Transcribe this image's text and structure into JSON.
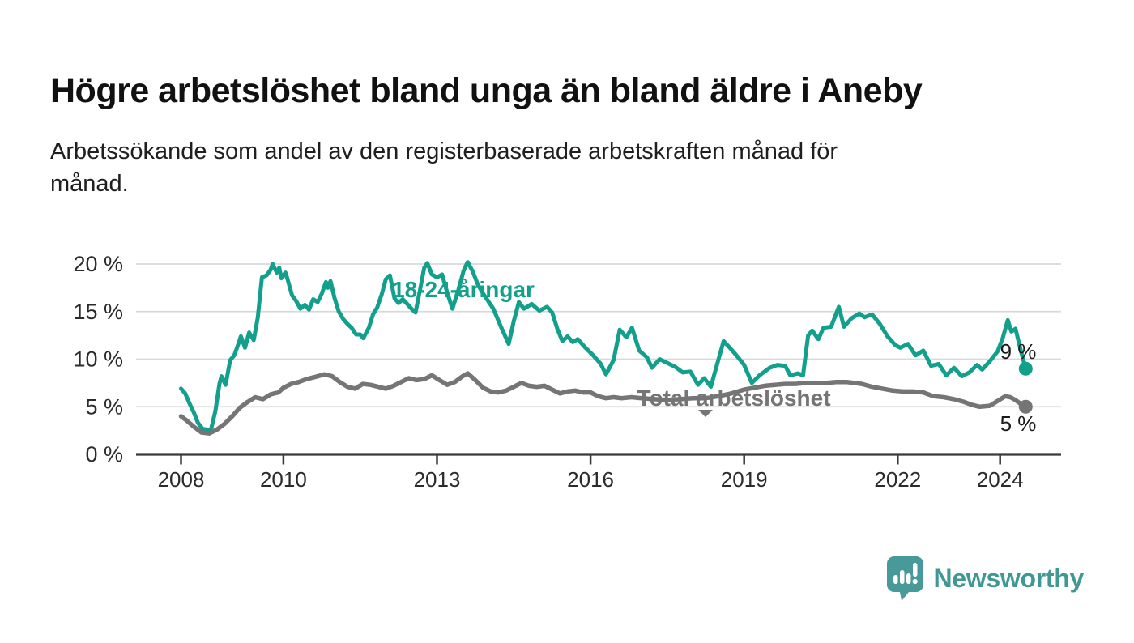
{
  "header": {
    "title": "Högre arbetslöshet bland unga än bland äldre i Aneby",
    "subtitle_line1": "Arbetssökande som andel av den registerbaserade arbetskraften månad för",
    "subtitle_line2": "månad."
  },
  "footer": {
    "brand": "Newsworthy"
  },
  "colors": {
    "young_series": "#12a08c",
    "total_series": "#757575",
    "gridline": "#d9d9d9",
    "axis": "#3a3a3a",
    "tick_label": "#2b2b2b",
    "end_label": "#1a1a1a",
    "logo_icon": "#47999a",
    "logo_text": "#3f9894"
  },
  "chart_data": {
    "type": "line",
    "title": "Högre arbetslöshet bland unga än bland äldre i Aneby",
    "subtitle": "Arbetssökande som andel av den registerbaserade arbetskraften månad för månad.",
    "xlabel": "",
    "ylabel": "",
    "unit": "%",
    "grid": "horizontal",
    "legend_position": "inline-labels",
    "xlim": [
      2007.1,
      2025.2
    ],
    "ylim": [
      0,
      21
    ],
    "yticks": [
      {
        "value": 0,
        "label": "0 %"
      },
      {
        "value": 5,
        "label": "5 %"
      },
      {
        "value": 10,
        "label": "10 %"
      },
      {
        "value": 15,
        "label": "15 %"
      },
      {
        "value": 20,
        "label": "20 %"
      }
    ],
    "xticks": [
      {
        "value": 2008,
        "label": "2008"
      },
      {
        "value": 2010,
        "label": "2010"
      },
      {
        "value": 2013,
        "label": "2013"
      },
      {
        "value": 2016,
        "label": "2016"
      },
      {
        "value": 2019,
        "label": "2019"
      },
      {
        "value": 2022,
        "label": "2022"
      },
      {
        "value": 2024,
        "label": "2024"
      }
    ],
    "series": [
      {
        "name": "18-24-åringar",
        "color": "#12a08c",
        "stroke_width": 5,
        "end_dot": true,
        "end_label": "9 %",
        "end_value": 9,
        "points": [
          [
            2008.0,
            6.9
          ],
          [
            2008.08,
            6.4
          ],
          [
            2008.17,
            5.3
          ],
          [
            2008.25,
            4.4
          ],
          [
            2008.33,
            3.3
          ],
          [
            2008.42,
            2.7
          ],
          [
            2008.5,
            2.6
          ],
          [
            2008.58,
            2.5
          ],
          [
            2008.67,
            4.5
          ],
          [
            2008.75,
            7.4
          ],
          [
            2008.79,
            8.2
          ],
          [
            2008.87,
            7.3
          ],
          [
            2008.96,
            9.9
          ],
          [
            2009.04,
            10.4
          ],
          [
            2009.12,
            11.6
          ],
          [
            2009.17,
            12.4
          ],
          [
            2009.25,
            11.2
          ],
          [
            2009.33,
            12.8
          ],
          [
            2009.42,
            12.0
          ],
          [
            2009.5,
            14.4
          ],
          [
            2009.54,
            16.5
          ],
          [
            2009.58,
            18.6
          ],
          [
            2009.67,
            18.8
          ],
          [
            2009.75,
            19.4
          ],
          [
            2009.79,
            20.0
          ],
          [
            2009.87,
            19.1
          ],
          [
            2009.92,
            19.6
          ],
          [
            2009.96,
            18.5
          ],
          [
            2010.04,
            19.1
          ],
          [
            2010.08,
            18.4
          ],
          [
            2010.17,
            16.7
          ],
          [
            2010.25,
            16.1
          ],
          [
            2010.33,
            15.3
          ],
          [
            2010.42,
            15.7
          ],
          [
            2010.5,
            15.2
          ],
          [
            2010.58,
            16.3
          ],
          [
            2010.67,
            16.0
          ],
          [
            2010.75,
            16.9
          ],
          [
            2010.83,
            18.1
          ],
          [
            2010.87,
            17.5
          ],
          [
            2010.92,
            18.2
          ],
          [
            2011.0,
            16.4
          ],
          [
            2011.08,
            15.0
          ],
          [
            2011.17,
            14.2
          ],
          [
            2011.25,
            13.7
          ],
          [
            2011.33,
            13.3
          ],
          [
            2011.42,
            12.6
          ],
          [
            2011.5,
            12.6
          ],
          [
            2011.56,
            12.2
          ],
          [
            2011.67,
            13.3
          ],
          [
            2011.75,
            14.7
          ],
          [
            2011.83,
            15.4
          ],
          [
            2011.92,
            16.8
          ],
          [
            2012.0,
            18.4
          ],
          [
            2012.08,
            18.8
          ],
          [
            2012.17,
            16.4
          ],
          [
            2012.25,
            15.9
          ],
          [
            2012.33,
            16.3
          ],
          [
            2012.42,
            15.8
          ],
          [
            2012.5,
            15.3
          ],
          [
            2012.58,
            14.9
          ],
          [
            2012.67,
            17.3
          ],
          [
            2012.75,
            19.6
          ],
          [
            2012.81,
            20.1
          ],
          [
            2012.9,
            18.9
          ],
          [
            2013.0,
            18.6
          ],
          [
            2013.1,
            18.9
          ],
          [
            2013.2,
            17.0
          ],
          [
            2013.3,
            15.3
          ],
          [
            2013.42,
            17.3
          ],
          [
            2013.52,
            19.3
          ],
          [
            2013.6,
            20.2
          ],
          [
            2013.7,
            19.2
          ],
          [
            2013.8,
            17.8
          ],
          [
            2013.9,
            16.9
          ],
          [
            2014.0,
            16.1
          ],
          [
            2014.1,
            15.3
          ],
          [
            2014.25,
            13.4
          ],
          [
            2014.4,
            11.6
          ],
          [
            2014.5,
            14.0
          ],
          [
            2014.6,
            16.0
          ],
          [
            2014.7,
            15.3
          ],
          [
            2014.85,
            15.8
          ],
          [
            2015.0,
            15.1
          ],
          [
            2015.15,
            15.5
          ],
          [
            2015.25,
            14.9
          ],
          [
            2015.35,
            13.2
          ],
          [
            2015.45,
            11.9
          ],
          [
            2015.55,
            12.4
          ],
          [
            2015.65,
            11.8
          ],
          [
            2015.75,
            12.1
          ],
          [
            2015.9,
            11.2
          ],
          [
            2016.05,
            10.4
          ],
          [
            2016.2,
            9.5
          ],
          [
            2016.3,
            8.4
          ],
          [
            2016.45,
            9.9
          ],
          [
            2016.57,
            13.1
          ],
          [
            2016.7,
            12.3
          ],
          [
            2016.81,
            13.3
          ],
          [
            2016.95,
            10.9
          ],
          [
            2017.1,
            10.2
          ],
          [
            2017.2,
            9.1
          ],
          [
            2017.35,
            10.0
          ],
          [
            2017.5,
            9.6
          ],
          [
            2017.65,
            9.2
          ],
          [
            2017.8,
            8.6
          ],
          [
            2017.95,
            8.7
          ],
          [
            2018.1,
            7.3
          ],
          [
            2018.22,
            8.0
          ],
          [
            2018.35,
            7.1
          ],
          [
            2018.5,
            10.0
          ],
          [
            2018.6,
            11.9
          ],
          [
            2018.72,
            11.2
          ],
          [
            2018.85,
            10.4
          ],
          [
            2019.0,
            9.4
          ],
          [
            2019.15,
            7.5
          ],
          [
            2019.3,
            8.3
          ],
          [
            2019.5,
            9.1
          ],
          [
            2019.65,
            9.4
          ],
          [
            2019.8,
            9.3
          ],
          [
            2019.9,
            8.3
          ],
          [
            2020.05,
            8.5
          ],
          [
            2020.15,
            8.3
          ],
          [
            2020.25,
            12.5
          ],
          [
            2020.33,
            13.0
          ],
          [
            2020.45,
            12.1
          ],
          [
            2020.55,
            13.3
          ],
          [
            2020.7,
            13.4
          ],
          [
            2020.85,
            15.5
          ],
          [
            2020.95,
            13.4
          ],
          [
            2021.1,
            14.3
          ],
          [
            2021.25,
            14.8
          ],
          [
            2021.35,
            14.4
          ],
          [
            2021.5,
            14.7
          ],
          [
            2021.65,
            13.7
          ],
          [
            2021.8,
            12.4
          ],
          [
            2021.95,
            11.5
          ],
          [
            2022.05,
            11.2
          ],
          [
            2022.2,
            11.6
          ],
          [
            2022.35,
            10.4
          ],
          [
            2022.5,
            10.9
          ],
          [
            2022.65,
            9.3
          ],
          [
            2022.8,
            9.5
          ],
          [
            2022.95,
            8.3
          ],
          [
            2023.1,
            9.1
          ],
          [
            2023.25,
            8.2
          ],
          [
            2023.4,
            8.6
          ],
          [
            2023.55,
            9.4
          ],
          [
            2023.65,
            8.9
          ],
          [
            2023.8,
            9.8
          ],
          [
            2023.95,
            10.8
          ],
          [
            2024.05,
            12.2
          ],
          [
            2024.15,
            14.1
          ],
          [
            2024.22,
            12.9
          ],
          [
            2024.3,
            13.2
          ],
          [
            2024.4,
            11.0
          ],
          [
            2024.5,
            9.0
          ]
        ]
      },
      {
        "name": "Total arbetslöshet",
        "color": "#757575",
        "stroke_width": 5.5,
        "end_dot": true,
        "end_label": "5 %",
        "end_value": 5,
        "points": [
          [
            2008.0,
            4.0
          ],
          [
            2008.1,
            3.6
          ],
          [
            2008.25,
            2.9
          ],
          [
            2008.4,
            2.3
          ],
          [
            2008.55,
            2.2
          ],
          [
            2008.7,
            2.6
          ],
          [
            2008.85,
            3.2
          ],
          [
            2009.0,
            4.0
          ],
          [
            2009.15,
            4.9
          ],
          [
            2009.3,
            5.5
          ],
          [
            2009.45,
            6.0
          ],
          [
            2009.6,
            5.8
          ],
          [
            2009.75,
            6.3
          ],
          [
            2009.9,
            6.5
          ],
          [
            2010.0,
            7.0
          ],
          [
            2010.15,
            7.4
          ],
          [
            2010.3,
            7.6
          ],
          [
            2010.45,
            7.9
          ],
          [
            2010.6,
            8.1
          ],
          [
            2010.8,
            8.4
          ],
          [
            2010.95,
            8.2
          ],
          [
            2011.1,
            7.6
          ],
          [
            2011.25,
            7.1
          ],
          [
            2011.4,
            6.9
          ],
          [
            2011.55,
            7.4
          ],
          [
            2011.7,
            7.3
          ],
          [
            2011.85,
            7.1
          ],
          [
            2012.0,
            6.9
          ],
          [
            2012.15,
            7.2
          ],
          [
            2012.3,
            7.6
          ],
          [
            2012.45,
            8.0
          ],
          [
            2012.6,
            7.8
          ],
          [
            2012.75,
            7.9
          ],
          [
            2012.9,
            8.3
          ],
          [
            2013.05,
            7.8
          ],
          [
            2013.2,
            7.3
          ],
          [
            2013.35,
            7.6
          ],
          [
            2013.5,
            8.2
          ],
          [
            2013.6,
            8.5
          ],
          [
            2013.75,
            7.8
          ],
          [
            2013.9,
            7.0
          ],
          [
            2014.05,
            6.6
          ],
          [
            2014.2,
            6.5
          ],
          [
            2014.35,
            6.7
          ],
          [
            2014.5,
            7.1
          ],
          [
            2014.65,
            7.5
          ],
          [
            2014.8,
            7.2
          ],
          [
            2014.95,
            7.1
          ],
          [
            2015.1,
            7.2
          ],
          [
            2015.25,
            6.8
          ],
          [
            2015.4,
            6.4
          ],
          [
            2015.55,
            6.6
          ],
          [
            2015.7,
            6.7
          ],
          [
            2015.85,
            6.5
          ],
          [
            2016.0,
            6.5
          ],
          [
            2016.15,
            6.1
          ],
          [
            2016.3,
            5.9
          ],
          [
            2016.45,
            6.0
          ],
          [
            2016.6,
            5.9
          ],
          [
            2016.8,
            6.0
          ],
          [
            2017.0,
            5.9
          ],
          [
            2017.25,
            5.8
          ],
          [
            2017.5,
            5.7
          ],
          [
            2017.75,
            5.8
          ],
          [
            2018.0,
            5.9
          ],
          [
            2018.25,
            5.9
          ],
          [
            2018.5,
            6.1
          ],
          [
            2018.75,
            6.4
          ],
          [
            2019.0,
            6.8
          ],
          [
            2019.2,
            7.0
          ],
          [
            2019.4,
            7.2
          ],
          [
            2019.6,
            7.3
          ],
          [
            2019.8,
            7.4
          ],
          [
            2020.0,
            7.4
          ],
          [
            2020.2,
            7.5
          ],
          [
            2020.4,
            7.5
          ],
          [
            2020.6,
            7.5
          ],
          [
            2020.8,
            7.6
          ],
          [
            2021.0,
            7.6
          ],
          [
            2021.15,
            7.5
          ],
          [
            2021.3,
            7.4
          ],
          [
            2021.5,
            7.1
          ],
          [
            2021.7,
            6.9
          ],
          [
            2021.9,
            6.7
          ],
          [
            2022.1,
            6.6
          ],
          [
            2022.3,
            6.6
          ],
          [
            2022.5,
            6.5
          ],
          [
            2022.7,
            6.1
          ],
          [
            2022.9,
            6.0
          ],
          [
            2023.1,
            5.8
          ],
          [
            2023.3,
            5.5
          ],
          [
            2023.45,
            5.2
          ],
          [
            2023.6,
            5.0
          ],
          [
            2023.8,
            5.1
          ],
          [
            2023.95,
            5.6
          ],
          [
            2024.1,
            6.1
          ],
          [
            2024.2,
            6.0
          ],
          [
            2024.3,
            5.7
          ],
          [
            2024.4,
            5.3
          ],
          [
            2024.5,
            5.0
          ]
        ]
      }
    ]
  }
}
